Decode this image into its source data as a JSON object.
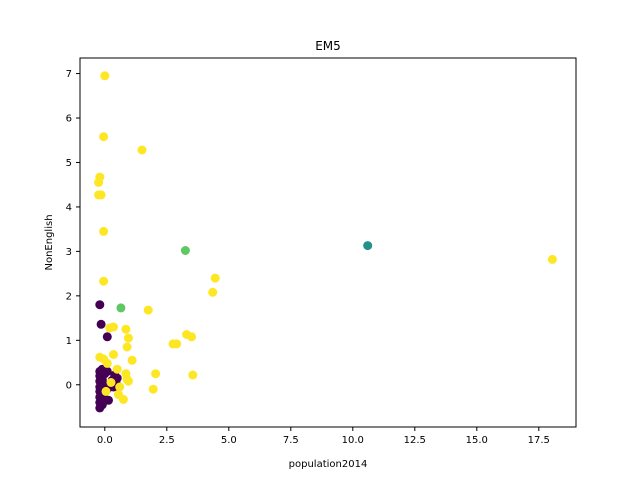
{
  "chart_data": {
    "type": "scatter",
    "title": "EM5",
    "xlabel": "population2014",
    "ylabel": "NonEnglish",
    "xlim": [
      -1.0,
      19.0
    ],
    "ylim": [
      -0.95,
      7.35
    ],
    "xticks": [
      0,
      2.5,
      5,
      7.5,
      10,
      12.5,
      15,
      17.5
    ],
    "xtick_labels": [
      "0.0",
      "2.5",
      "5.0",
      "7.5",
      "10.0",
      "12.5",
      "15.0",
      "17.5"
    ],
    "yticks": [
      0,
      1,
      2,
      3,
      4,
      5,
      6,
      7
    ],
    "ytick_labels": [
      "0",
      "1",
      "2",
      "3",
      "4",
      "5",
      "6",
      "7"
    ],
    "grid": false,
    "legend": "none",
    "colors": {
      "cluster_dark_purple": "#440154",
      "cluster_teal": "#21918c",
      "cluster_green": "#5ec962",
      "cluster_yellow": "#fde725"
    },
    "points": [
      {
        "x": -0.2,
        "y": 1.8,
        "c": "#440154"
      },
      {
        "x": -0.15,
        "y": 1.36,
        "c": "#440154"
      },
      {
        "x": 0.1,
        "y": 1.08,
        "c": "#440154"
      },
      {
        "x": -0.2,
        "y": 0.3,
        "c": "#440154"
      },
      {
        "x": -0.2,
        "y": 0.2,
        "c": "#440154"
      },
      {
        "x": -0.2,
        "y": 0.08,
        "c": "#440154"
      },
      {
        "x": -0.2,
        "y": -0.05,
        "c": "#440154"
      },
      {
        "x": -0.2,
        "y": -0.15,
        "c": "#440154"
      },
      {
        "x": -0.2,
        "y": -0.28,
        "c": "#440154"
      },
      {
        "x": -0.2,
        "y": -0.4,
        "c": "#440154"
      },
      {
        "x": -0.2,
        "y": -0.52,
        "c": "#440154"
      },
      {
        "x": -0.1,
        "y": 0.35,
        "c": "#440154"
      },
      {
        "x": -0.1,
        "y": 0.12,
        "c": "#440154"
      },
      {
        "x": -0.1,
        "y": -0.22,
        "c": "#440154"
      },
      {
        "x": -0.1,
        "y": -0.45,
        "c": "#440154"
      },
      {
        "x": 0.0,
        "y": 0.25,
        "c": "#440154"
      },
      {
        "x": 0.0,
        "y": 0.0,
        "c": "#440154"
      },
      {
        "x": 0.0,
        "y": -0.32,
        "c": "#440154"
      },
      {
        "x": 0.1,
        "y": 0.3,
        "c": "#440154"
      },
      {
        "x": 0.1,
        "y": -0.1,
        "c": "#440154"
      },
      {
        "x": 0.15,
        "y": -0.35,
        "c": "#440154"
      },
      {
        "x": 0.3,
        "y": 0.1,
        "c": "#440154"
      },
      {
        "x": 0.35,
        "y": -0.05,
        "c": "#440154"
      },
      {
        "x": 0.4,
        "y": 0.22,
        "c": "#440154"
      },
      {
        "x": 0.45,
        "y": 0.05,
        "c": "#440154"
      },
      {
        "x": 0.5,
        "y": 0.15,
        "c": "#440154"
      },
      {
        "x": 0.2,
        "y": 0.0,
        "c": "#440154"
      },
      {
        "x": 10.6,
        "y": 3.13,
        "c": "#21918c"
      },
      {
        "x": 3.25,
        "y": 3.02,
        "c": "#5ec962"
      },
      {
        "x": 0.65,
        "y": 1.73,
        "c": "#5ec962"
      },
      {
        "x": 0.0,
        "y": 6.95,
        "c": "#fde725"
      },
      {
        "x": -0.05,
        "y": 5.58,
        "c": "#fde725"
      },
      {
        "x": 1.5,
        "y": 5.28,
        "c": "#fde725"
      },
      {
        "x": -0.2,
        "y": 4.67,
        "c": "#fde725"
      },
      {
        "x": -0.25,
        "y": 4.55,
        "c": "#fde725"
      },
      {
        "x": -0.25,
        "y": 4.27,
        "c": "#fde725"
      },
      {
        "x": -0.15,
        "y": 4.27,
        "c": "#fde725"
      },
      {
        "x": -0.05,
        "y": 3.45,
        "c": "#fde725"
      },
      {
        "x": -0.05,
        "y": 2.33,
        "c": "#fde725"
      },
      {
        "x": 18.05,
        "y": 2.82,
        "c": "#fde725"
      },
      {
        "x": 4.45,
        "y": 2.4,
        "c": "#fde725"
      },
      {
        "x": 4.35,
        "y": 2.08,
        "c": "#fde725"
      },
      {
        "x": 1.75,
        "y": 1.68,
        "c": "#fde725"
      },
      {
        "x": 0.2,
        "y": 1.28,
        "c": "#fde725"
      },
      {
        "x": 0.35,
        "y": 1.3,
        "c": "#fde725"
      },
      {
        "x": 0.85,
        "y": 1.25,
        "c": "#fde725"
      },
      {
        "x": 0.95,
        "y": 1.05,
        "c": "#fde725"
      },
      {
        "x": 3.3,
        "y": 1.13,
        "c": "#fde725"
      },
      {
        "x": 3.5,
        "y": 1.08,
        "c": "#fde725"
      },
      {
        "x": 2.75,
        "y": 0.92,
        "c": "#fde725"
      },
      {
        "x": 2.9,
        "y": 0.92,
        "c": "#fde725"
      },
      {
        "x": 0.9,
        "y": 0.85,
        "c": "#fde725"
      },
      {
        "x": 0.35,
        "y": 0.68,
        "c": "#fde725"
      },
      {
        "x": 1.1,
        "y": 0.55,
        "c": "#fde725"
      },
      {
        "x": -0.2,
        "y": 0.62,
        "c": "#fde725"
      },
      {
        "x": -0.05,
        "y": 0.58,
        "c": "#fde725"
      },
      {
        "x": 0.1,
        "y": 0.48,
        "c": "#fde725"
      },
      {
        "x": 0.5,
        "y": 0.35,
        "c": "#fde725"
      },
      {
        "x": 0.85,
        "y": 0.25,
        "c": "#fde725"
      },
      {
        "x": 2.05,
        "y": 0.25,
        "c": "#fde725"
      },
      {
        "x": 3.55,
        "y": 0.22,
        "c": "#fde725"
      },
      {
        "x": 0.9,
        "y": 0.12,
        "c": "#fde725"
      },
      {
        "x": 0.95,
        "y": 0.08,
        "c": "#fde725"
      },
      {
        "x": 0.25,
        "y": 0.05,
        "c": "#fde725"
      },
      {
        "x": 0.6,
        "y": -0.05,
        "c": "#fde725"
      },
      {
        "x": 1.95,
        "y": -0.1,
        "c": "#fde725"
      },
      {
        "x": 0.55,
        "y": -0.22,
        "c": "#fde725"
      },
      {
        "x": 0.75,
        "y": -0.33,
        "c": "#fde725"
      },
      {
        "x": 0.05,
        "y": -0.15,
        "c": "#fde725"
      }
    ]
  }
}
